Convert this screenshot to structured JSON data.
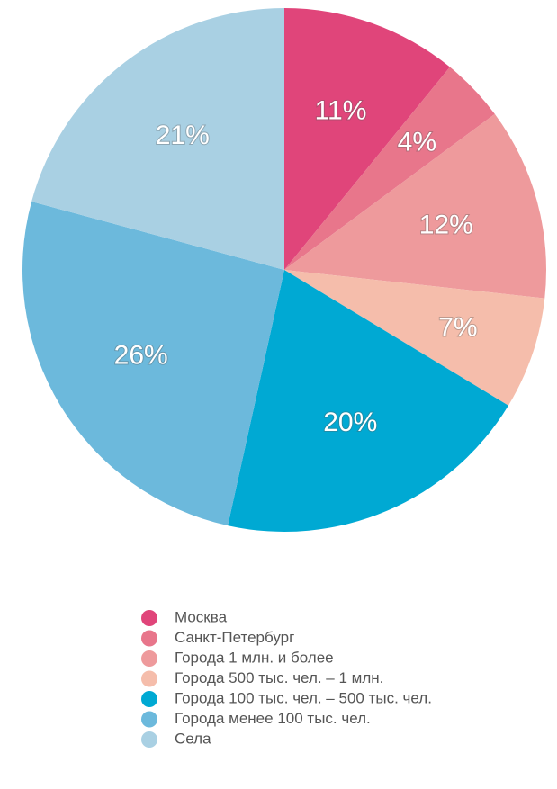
{
  "chart_data": {
    "type": "pie",
    "categories": [
      "Москва",
      "Санкт-Петербург",
      "Города 1 млн. и более",
      "Города 500 тыс. чел. – 1 млн.",
      "Города 100 тыс. чел. – 500 тыс. чел.",
      "Города менее 100 тыс. чел.",
      "Села"
    ],
    "values": [
      11,
      4,
      12,
      7,
      20,
      26,
      21
    ],
    "value_labels": [
      "11%",
      "4%",
      "12%",
      "7%",
      "20%",
      "26%",
      "21%"
    ],
    "colors": [
      "#e0457a",
      "#e8768b",
      "#ee9a9c",
      "#f5bdab",
      "#00a9d3",
      "#6cb9dc",
      "#a9d0e3"
    ],
    "legend": "bottom"
  }
}
